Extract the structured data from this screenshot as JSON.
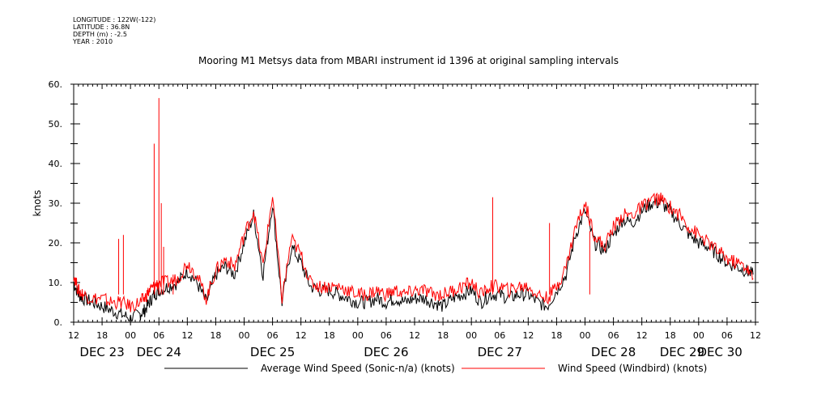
{
  "metadata": {
    "longitude": "LONGITUDE : 122W(-122)",
    "latitude": "LATITUDE : 36.8N",
    "depth": "DEPTH (m) : -2.5",
    "year": "YEAR : 2010"
  },
  "chart_data": {
    "type": "line",
    "title": "Mooring M1 Metsys data from MBARI instrument id 1396 at original sampling intervals",
    "ylabel": "knots",
    "xlabel": "",
    "ylim": [
      0,
      60
    ],
    "y_ticks": [
      0,
      10,
      20,
      30,
      40,
      50,
      60
    ],
    "y_tick_labels": [
      "0.",
      "10.",
      "20.",
      "30.",
      "40.",
      "50.",
      "60."
    ],
    "x_unit": "hours since DEC 23 00:00",
    "xlim": [
      12,
      156
    ],
    "x_ticks": [
      12,
      18,
      24,
      30,
      36,
      42,
      48,
      54,
      60,
      66,
      72,
      78,
      84,
      90,
      96,
      102,
      108,
      114,
      120,
      126,
      132,
      138,
      144,
      150,
      156
    ],
    "x_tick_labels": [
      "12",
      "18",
      "00",
      "06",
      "12",
      "18",
      "00",
      "06",
      "12",
      "18",
      "00",
      "06",
      "12",
      "18",
      "00",
      "06",
      "12",
      "18",
      "00",
      "06",
      "12",
      "18",
      "00",
      "06",
      "12"
    ],
    "day_labels": [
      "DEC 23",
      "DEC 24",
      "DEC 25",
      "DEC 26",
      "DEC 27",
      "DEC 28",
      "DEC 29",
      "DEC 30"
    ],
    "grid": false,
    "legend_position": "bottom",
    "series": [
      {
        "name": "Average Wind Speed (Sonic-n/a) (knots)",
        "color": "#000000",
        "x": [
          12,
          13,
          14,
          16,
          18,
          20,
          22,
          24,
          26,
          27,
          28,
          29,
          30,
          32,
          34,
          36,
          38,
          40,
          42,
          44,
          46,
          48,
          50,
          52,
          54,
          56,
          58,
          60,
          62,
          64,
          66,
          68,
          70,
          72,
          74,
          76,
          78,
          80,
          82,
          84,
          86,
          88,
          90,
          92,
          94,
          96,
          98,
          100,
          102,
          104,
          106,
          108,
          110,
          112,
          114,
          116,
          118,
          120,
          122,
          124,
          126,
          128,
          130,
          132,
          134,
          136,
          138,
          140,
          142,
          144,
          146,
          148,
          150,
          152,
          154,
          155.5
        ],
        "y": [
          10,
          7,
          6,
          5,
          4,
          3,
          2,
          1,
          2,
          3,
          5,
          7,
          8,
          9,
          10,
          13,
          10,
          5,
          12,
          14,
          12,
          20,
          27,
          12,
          30,
          5,
          19,
          15,
          9,
          8,
          8,
          7,
          6,
          5,
          5,
          6,
          5,
          6,
          5,
          6,
          6,
          5,
          4,
          6,
          7,
          8,
          5,
          7,
          7,
          6,
          7,
          7,
          5,
          4,
          8,
          12,
          22,
          28,
          20,
          18,
          22,
          26,
          25,
          28,
          30,
          30,
          28,
          25,
          22,
          20,
          19,
          17,
          15,
          14,
          13,
          12
        ]
      },
      {
        "name": "Wind Speed (Windbird) (knots)",
        "color": "#ff0000",
        "x": [
          12,
          13,
          14,
          16,
          18,
          20,
          22,
          24,
          26,
          27,
          28,
          29,
          30,
          32,
          34,
          36,
          38,
          40,
          42,
          44,
          46,
          48,
          50,
          52,
          54,
          56,
          58,
          60,
          62,
          64,
          66,
          68,
          70,
          72,
          74,
          76,
          78,
          80,
          82,
          84,
          86,
          88,
          90,
          92,
          94,
          96,
          98,
          100,
          102,
          104,
          106,
          108,
          110,
          112,
          114,
          116,
          118,
          120,
          122,
          124,
          126,
          128,
          130,
          132,
          134,
          136,
          138,
          140,
          142,
          144,
          146,
          148,
          150,
          152,
          154,
          155.5
        ],
        "y": [
          12,
          8,
          7,
          6,
          6,
          5,
          5,
          4,
          5,
          6,
          8,
          9,
          10,
          10,
          11,
          15,
          12,
          6,
          13,
          16,
          14,
          22,
          28,
          14,
          32,
          6,
          21,
          17,
          10,
          9,
          9,
          9,
          8,
          7,
          7,
          8,
          7,
          8,
          7,
          8,
          8,
          7,
          7,
          8,
          9,
          10,
          7,
          9,
          9,
          8,
          9,
          9,
          7,
          6,
          9,
          14,
          24,
          30,
          22,
          19,
          24,
          27,
          27,
          29,
          31,
          31,
          29,
          27,
          24,
          22,
          20,
          18,
          16,
          15,
          14,
          11
        ]
      }
    ],
    "red_spikes": [
      {
        "x": 21.5,
        "y": 21
      },
      {
        "x": 22.5,
        "y": 22
      },
      {
        "x": 29,
        "y": 45
      },
      {
        "x": 30,
        "y": 56.5
      },
      {
        "x": 30.5,
        "y": 30
      },
      {
        "x": 31,
        "y": 19
      },
      {
        "x": 33,
        "y": 12
      },
      {
        "x": 100.5,
        "y": 31.5
      },
      {
        "x": 112.5,
        "y": 25
      },
      {
        "x": 121,
        "y": 23
      }
    ]
  }
}
